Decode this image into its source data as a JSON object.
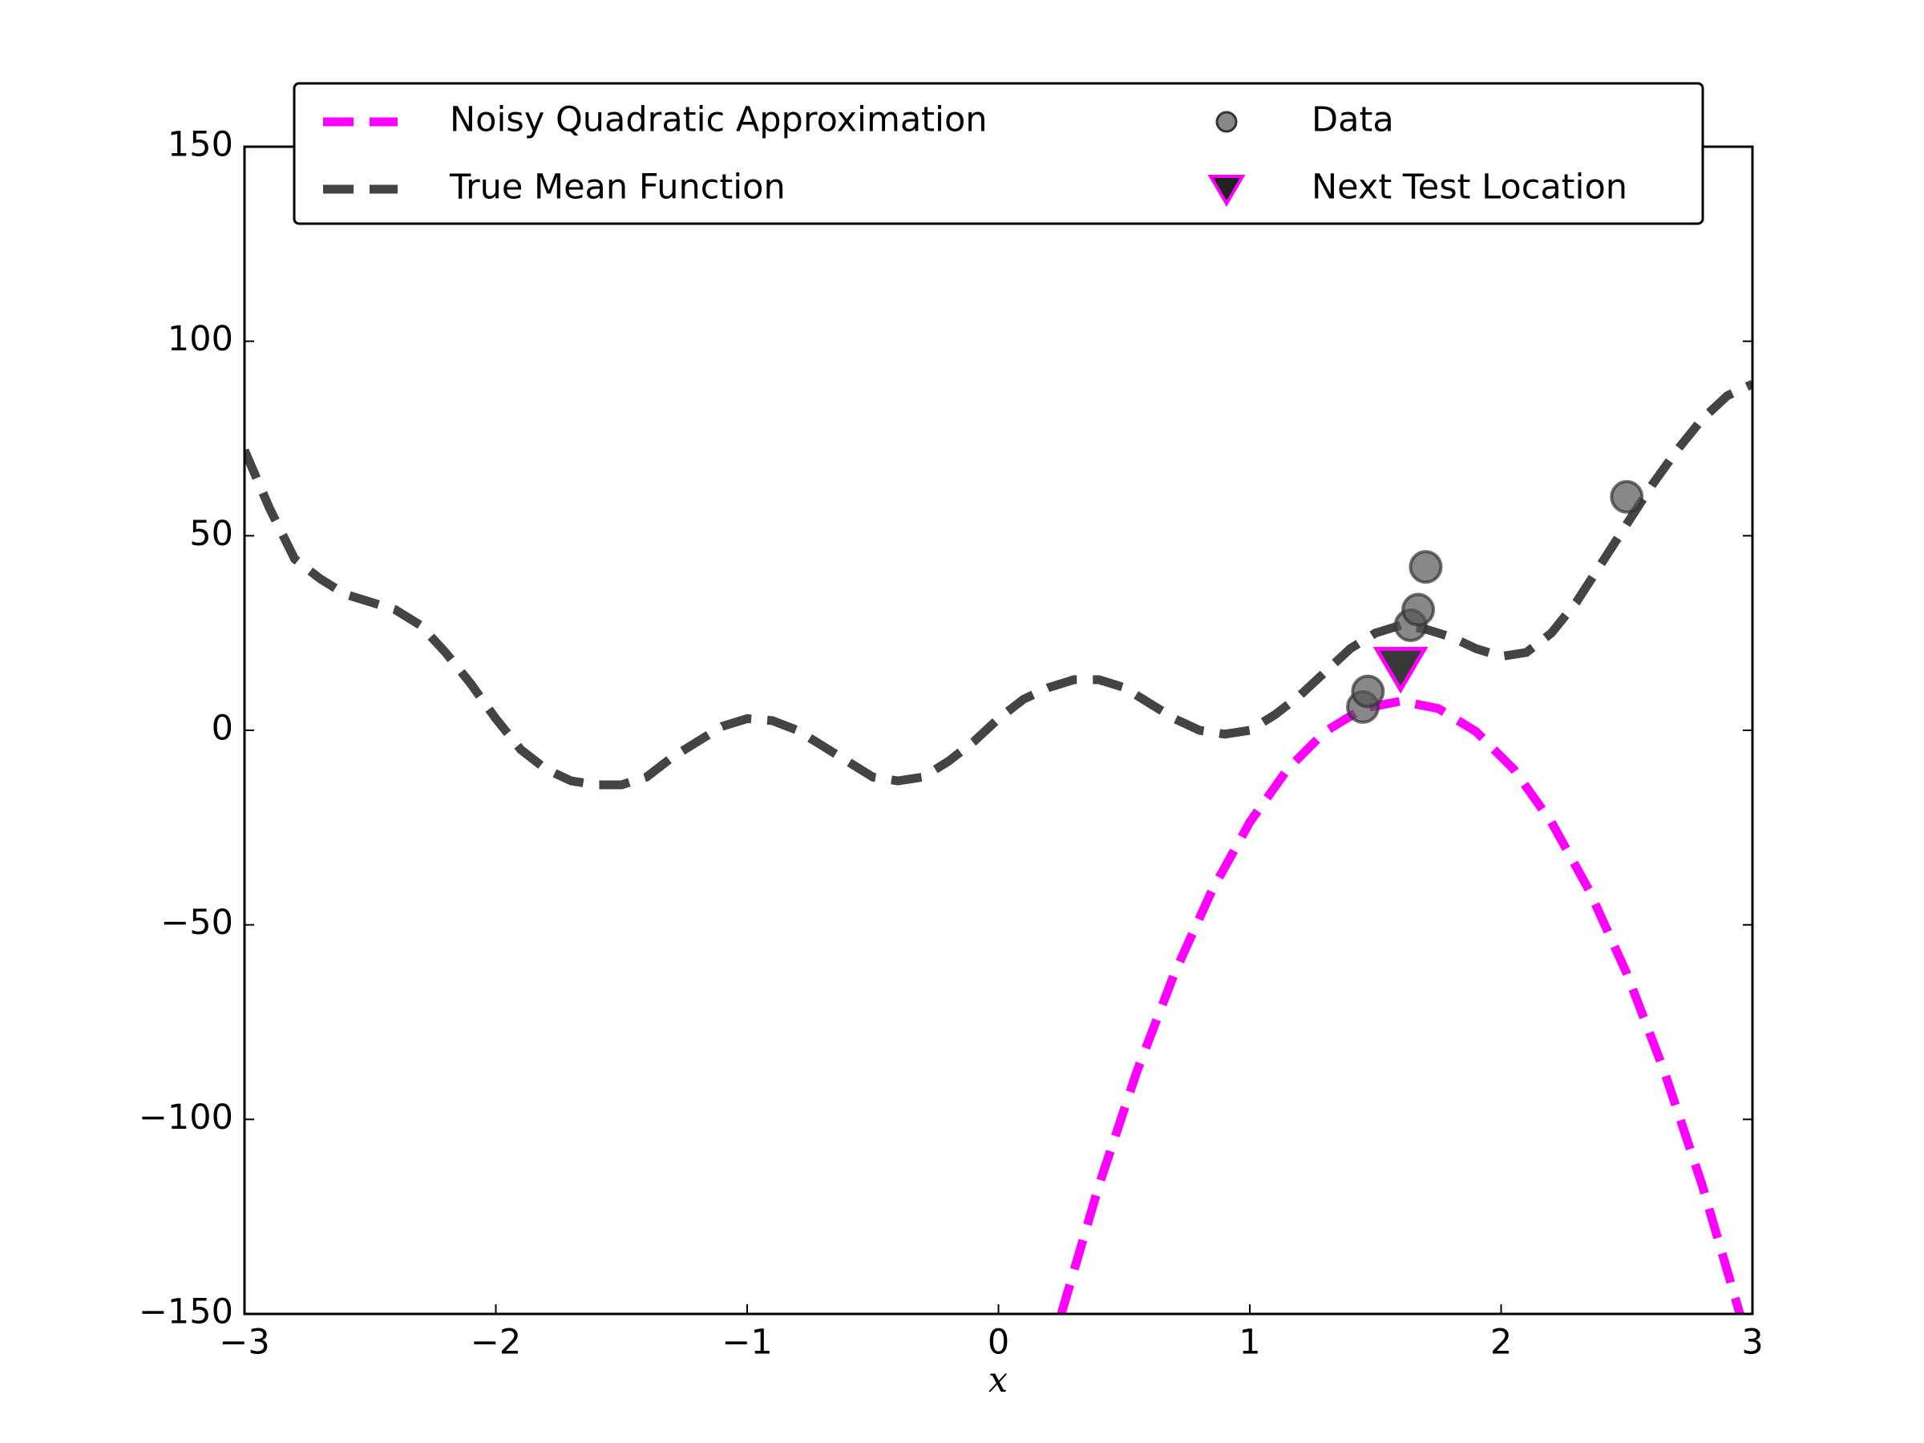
{
  "chart_data": {
    "type": "line",
    "xlabel": "x",
    "xlim": [
      -3,
      3
    ],
    "ylim": [
      -150,
      150
    ],
    "xticks": [
      {
        "value": -3,
        "label": "−3"
      },
      {
        "value": -2,
        "label": "−2"
      },
      {
        "value": -1,
        "label": "−1"
      },
      0,
      1,
      2,
      3
    ],
    "yticks": [
      {
        "value": -150,
        "label": "−150"
      },
      {
        "value": -100,
        "label": "−100"
      },
      {
        "value": -50,
        "label": "−50"
      },
      0,
      50,
      100,
      150
    ],
    "legend": "upper center",
    "legend_columns": 2,
    "series": [
      {
        "name": "Noisy Quadratic Approximation",
        "type": "line",
        "dash": "dashed",
        "color": "#ff00ff",
        "x": [
          0.25,
          0.4,
          0.55,
          0.7,
          0.85,
          1.0,
          1.15,
          1.3,
          1.45,
          1.6,
          1.75,
          1.9,
          2.05,
          2.2,
          2.35,
          2.5,
          2.65,
          2.8,
          2.95
        ],
        "values": [
          -150,
          -116.9,
          -87.8,
          -62.5,
          -41.1,
          -23.6,
          -10,
          -0.3,
          5.6,
          7.5,
          5.6,
          -0.3,
          -10,
          -23.6,
          -41.1,
          -62.5,
          -87.8,
          -116.9,
          -150
        ]
      },
      {
        "name": "True Mean Function",
        "type": "line",
        "dash": "dashed",
        "color": "#444444",
        "x": [
          -3,
          -2.9,
          -2.8,
          -2.7,
          -2.6,
          -2.5,
          -2.4,
          -2.3,
          -2.2,
          -2.1,
          -2,
          -1.9,
          -1.8,
          -1.7,
          -1.6,
          -1.5,
          -1.4,
          -1.3,
          -1.2,
          -1.1,
          -1,
          -0.9,
          -0.8,
          -0.7,
          -0.6,
          -0.5,
          -0.4,
          -0.3,
          -0.2,
          -0.1,
          0,
          0.1,
          0.2,
          0.3,
          0.4,
          0.5,
          0.6,
          0.7,
          0.8,
          0.9,
          1,
          1.1,
          1.2,
          1.3,
          1.4,
          1.5,
          1.6,
          1.7,
          1.8,
          1.9,
          2,
          2.1,
          2.2,
          2.3,
          2.4,
          2.5,
          2.6,
          2.7,
          2.8,
          2.9,
          3
        ],
        "values": [
          72,
          57,
          44,
          39,
          35,
          33,
          31,
          27,
          20,
          12,
          3,
          -5,
          -10,
          -13,
          -14,
          -14,
          -12,
          -7,
          -3,
          1,
          3,
          2.5,
          0,
          -4,
          -8,
          -12,
          -13,
          -12,
          -8,
          -3,
          3,
          8,
          11,
          13,
          13,
          11,
          7,
          3,
          0,
          -1,
          0,
          4,
          9,
          15,
          21,
          25,
          27,
          26,
          24,
          21,
          19,
          20,
          25,
          33,
          43,
          53,
          63,
          72,
          80,
          86,
          89
        ]
      },
      {
        "name": "Data",
        "type": "scatter",
        "marker": "circle",
        "color": "#555555",
        "x": [
          1.45,
          1.47,
          1.64,
          1.67,
          1.7,
          2.5
        ],
        "values": [
          6,
          10,
          27,
          31,
          42,
          60
        ]
      },
      {
        "name": "Next Test Location",
        "type": "scatter",
        "marker": "triangle",
        "color": "#222222",
        "edgecolor": "#ff00ff",
        "x": [
          1.6
        ],
        "values": [
          16
        ]
      }
    ]
  }
}
